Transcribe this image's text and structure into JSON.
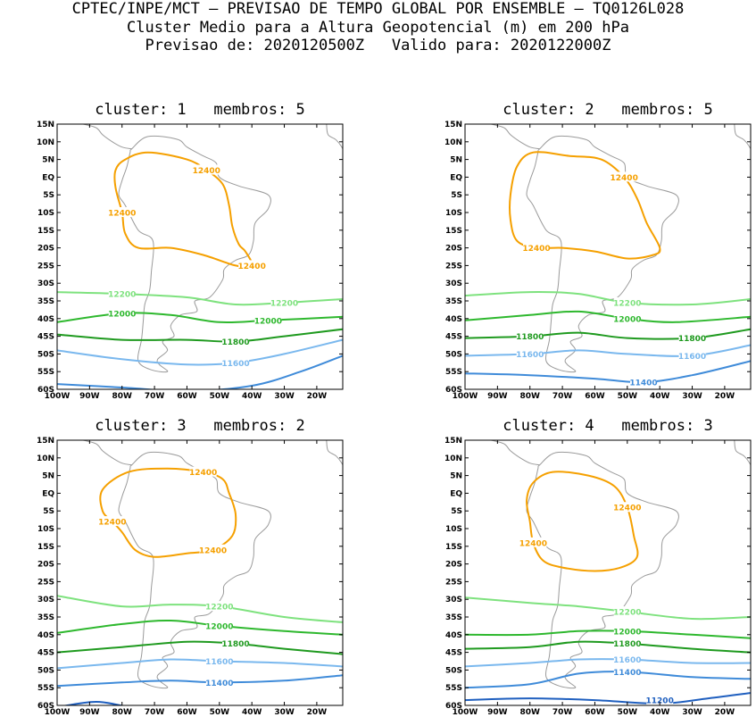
{
  "header": {
    "line1": "CPTEC/INPE/MCT – PREVISAO DE TEMPO GLOBAL POR ENSEMBLE – TQ0126L028",
    "line2": "Cluster Medio para a Altura Geopotencial (m) em 200 hPa",
    "line3": "Previsao de: 2020120500Z   Valido para: 2020122000Z"
  },
  "colors": {
    "c12400": "#f5a000",
    "c12200": "#7ee27e",
    "c12000": "#2eb82e",
    "c11800": "#1f9a1f",
    "c11600": "#7ab8ee",
    "c11400": "#3f8bd9",
    "c11200": "#1f5fbf",
    "map": "#9a9a9a"
  },
  "axes": {
    "lat_labels": [
      "15N",
      "10N",
      "5N",
      "EQ",
      "5S",
      "10S",
      "15S",
      "20S",
      "25S",
      "30S",
      "35S",
      "40S",
      "45S",
      "50S",
      "55S",
      "60S"
    ],
    "lon_labels": [
      "100W",
      "90W",
      "80W",
      "70W",
      "60W",
      "50W",
      "40W",
      "30W",
      "20W"
    ],
    "lat_range": [
      -60,
      15
    ],
    "lon_range": [
      -100,
      -12
    ]
  },
  "chart_data": [
    {
      "type": "contour",
      "title": "cluster: 1   membros: 5",
      "contours": [
        {
          "level": "12400",
          "labels": [
            "12400",
            "12400",
            "12400"
          ],
          "ring": [
            [
              -79,
              5
            ],
            [
              -72,
              7
            ],
            [
              -60,
              5
            ],
            [
              -54,
              2
            ],
            [
              -49,
              -2
            ],
            [
              -47,
              -8
            ],
            [
              -46,
              -14
            ],
            [
              -44,
              -19
            ],
            [
              -42,
              -21
            ],
            [
              -40,
              -25
            ],
            [
              -45,
              -25
            ],
            [
              -55,
              -22
            ],
            [
              -65,
              -20
            ],
            [
              -75,
              -20
            ],
            [
              -79,
              -16
            ],
            [
              -80,
              -10
            ],
            [
              -82,
              -3
            ],
            [
              -82,
              2
            ]
          ]
        },
        {
          "level": "12200",
          "labels": [
            "12200",
            "12200"
          ],
          "line": [
            [
              -100,
              -32.5
            ],
            [
              -80,
              -33
            ],
            [
              -60,
              -34
            ],
            [
              -45,
              -36
            ],
            [
              -30,
              -35.5
            ],
            [
              -12,
              -34.5
            ]
          ]
        },
        {
          "level": "12000",
          "labels": [
            "12000",
            "12000"
          ],
          "line": [
            [
              -100,
              -41
            ],
            [
              -80,
              -38.5
            ],
            [
              -65,
              -39
            ],
            [
              -50,
              -41
            ],
            [
              -35,
              -40.5
            ],
            [
              -12,
              -39.5
            ]
          ]
        },
        {
          "level": "11800",
          "labels": [
            "11800"
          ],
          "line": [
            [
              -100,
              -44.5
            ],
            [
              -80,
              -46
            ],
            [
              -60,
              -46
            ],
            [
              -45,
              -46.5
            ],
            [
              -30,
              -45
            ],
            [
              -12,
              -43
            ]
          ]
        },
        {
          "level": "11600",
          "labels": [
            "11600"
          ],
          "line": [
            [
              -100,
              -49
            ],
            [
              -80,
              -51.5
            ],
            [
              -60,
              -53
            ],
            [
              -45,
              -52.5
            ],
            [
              -30,
              -50
            ],
            [
              -12,
              -46
            ]
          ]
        },
        {
          "level": "11400",
          "labels": [],
          "line": [
            [
              -100,
              -58.5
            ],
            [
              -80,
              -59.5
            ],
            [
              -60,
              -60.5
            ],
            [
              -40,
              -59
            ],
            [
              -25,
              -55
            ],
            [
              -12,
              -50.5
            ]
          ]
        }
      ]
    },
    {
      "type": "contour",
      "title": "cluster: 2   membros: 5",
      "contours": [
        {
          "level": "12400",
          "labels": [
            "12400",
            "12400"
          ],
          "ring": [
            [
              -84,
              3
            ],
            [
              -79,
              7
            ],
            [
              -68,
              6
            ],
            [
              -58,
              5
            ],
            [
              -51,
              0
            ],
            [
              -47,
              -6
            ],
            [
              -44,
              -13
            ],
            [
              -40,
              -20
            ],
            [
              -42,
              -22
            ],
            [
              -50,
              -23
            ],
            [
              -60,
              -21
            ],
            [
              -70,
              -20
            ],
            [
              -78,
              -20
            ],
            [
              -84,
              -18
            ],
            [
              -86,
              -12
            ],
            [
              -86,
              -5
            ]
          ]
        },
        {
          "level": "12200",
          "labels": [
            "12200"
          ],
          "line": [
            [
              -100,
              -33.5
            ],
            [
              -80,
              -32.5
            ],
            [
              -65,
              -33
            ],
            [
              -50,
              -35.5
            ],
            [
              -30,
              -36
            ],
            [
              -12,
              -34.5
            ]
          ]
        },
        {
          "level": "12000",
          "labels": [
            "12000"
          ],
          "line": [
            [
              -100,
              -40.5
            ],
            [
              -80,
              -39
            ],
            [
              -65,
              -38
            ],
            [
              -50,
              -40
            ],
            [
              -35,
              -41
            ],
            [
              -12,
              -39.5
            ]
          ]
        },
        {
          "level": "11800",
          "labels": [
            "11800",
            "11800"
          ],
          "line": [
            [
              -100,
              -45.5
            ],
            [
              -80,
              -45
            ],
            [
              -65,
              -44
            ],
            [
              -50,
              -45.5
            ],
            [
              -30,
              -45.5
            ],
            [
              -12,
              -43
            ]
          ]
        },
        {
          "level": "11600",
          "labels": [
            "11600",
            "11600"
          ],
          "line": [
            [
              -100,
              -50.5
            ],
            [
              -80,
              -50
            ],
            [
              -65,
              -49
            ],
            [
              -50,
              -50
            ],
            [
              -30,
              -50.5
            ],
            [
              -12,
              -47.5
            ]
          ]
        },
        {
          "level": "11400",
          "labels": [
            "11400"
          ],
          "line": [
            [
              -100,
              -55.5
            ],
            [
              -80,
              -56
            ],
            [
              -60,
              -57
            ],
            [
              -45,
              -58
            ],
            [
              -30,
              -56
            ],
            [
              -12,
              -52
            ]
          ]
        }
      ]
    },
    {
      "type": "contour",
      "title": "cluster: 3   membros: 2",
      "contours": [
        {
          "level": "12400",
          "labels": [
            "12400",
            "12400",
            "12400"
          ],
          "ring": [
            [
              -86,
              1
            ],
            [
              -78,
              6
            ],
            [
              -66,
              7
            ],
            [
              -55,
              6
            ],
            [
              -49,
              4
            ],
            [
              -47,
              0
            ],
            [
              -45,
              -6
            ],
            [
              -46,
              -12
            ],
            [
              -52,
              -16
            ],
            [
              -60,
              -17
            ],
            [
              -70,
              -18
            ],
            [
              -76,
              -16
            ],
            [
              -80,
              -11
            ],
            [
              -83,
              -8
            ],
            [
              -86,
              -5
            ]
          ]
        },
        {
          "level": "12200",
          "labels": [
            "12200"
          ],
          "line": [
            [
              -100,
              -29
            ],
            [
              -80,
              -32
            ],
            [
              -65,
              -31.5
            ],
            [
              -50,
              -32
            ],
            [
              -30,
              -35
            ],
            [
              -12,
              -36.5
            ]
          ]
        },
        {
          "level": "12000",
          "labels": [
            "12000"
          ],
          "line": [
            [
              -100,
              -39.5
            ],
            [
              -80,
              -37
            ],
            [
              -65,
              -36
            ],
            [
              -50,
              -37.5
            ],
            [
              -30,
              -39
            ],
            [
              -12,
              -40
            ]
          ]
        },
        {
          "level": "11800",
          "labels": [
            "11800"
          ],
          "line": [
            [
              -100,
              -45
            ],
            [
              -80,
              -43.5
            ],
            [
              -60,
              -42
            ],
            [
              -45,
              -42.5
            ],
            [
              -30,
              -44
            ],
            [
              -12,
              -45.5
            ]
          ]
        },
        {
          "level": "11600",
          "labels": [
            "11600"
          ],
          "line": [
            [
              -100,
              -49.5
            ],
            [
              -80,
              -48
            ],
            [
              -65,
              -47
            ],
            [
              -50,
              -47.5
            ],
            [
              -30,
              -48
            ],
            [
              -12,
              -49
            ]
          ]
        },
        {
          "level": "11400",
          "labels": [
            "11400"
          ],
          "line": [
            [
              -100,
              -54.5
            ],
            [
              -80,
              -53.5
            ],
            [
              -65,
              -53
            ],
            [
              -50,
              -53.5
            ],
            [
              -30,
              -53
            ],
            [
              -12,
              -51.5
            ]
          ]
        },
        {
          "level": "11200",
          "labels": [],
          "line": [
            [
              -100,
              -60.5
            ],
            [
              -88,
              -59
            ],
            [
              -78,
              -60.5
            ]
          ]
        }
      ]
    },
    {
      "type": "contour",
      "title": "cluster: 4   membros: 3",
      "contours": [
        {
          "level": "12400",
          "labels": [
            "12400",
            "12400"
          ],
          "ring": [
            [
              -79,
              3
            ],
            [
              -73,
              6
            ],
            [
              -62,
              5
            ],
            [
              -54,
              2
            ],
            [
              -50,
              -4
            ],
            [
              -48,
              -12
            ],
            [
              -47,
              -18
            ],
            [
              -52,
              -21
            ],
            [
              -60,
              -22
            ],
            [
              -70,
              -21
            ],
            [
              -76,
              -19
            ],
            [
              -79,
              -14
            ],
            [
              -80,
              -8
            ],
            [
              -81,
              -2
            ]
          ]
        },
        {
          "level": "12200",
          "labels": [
            "12200"
          ],
          "line": [
            [
              -100,
              -29.5
            ],
            [
              -80,
              -31
            ],
            [
              -65,
              -32
            ],
            [
              -50,
              -33.5
            ],
            [
              -30,
              -35.5
            ],
            [
              -12,
              -35
            ]
          ]
        },
        {
          "level": "12000",
          "labels": [
            "12000"
          ],
          "line": [
            [
              -100,
              -40
            ],
            [
              -80,
              -40
            ],
            [
              -65,
              -39
            ],
            [
              -50,
              -39
            ],
            [
              -30,
              -40
            ],
            [
              -12,
              -41
            ]
          ]
        },
        {
          "level": "11800",
          "labels": [
            "11800"
          ],
          "line": [
            [
              -100,
              -44
            ],
            [
              -80,
              -43.5
            ],
            [
              -65,
              -42
            ],
            [
              -50,
              -42.5
            ],
            [
              -30,
              -44
            ],
            [
              -12,
              -45
            ]
          ]
        },
        {
          "level": "11600",
          "labels": [
            "11600"
          ],
          "line": [
            [
              -100,
              -49
            ],
            [
              -80,
              -48
            ],
            [
              -65,
              -47
            ],
            [
              -50,
              -47
            ],
            [
              -30,
              -48
            ],
            [
              -12,
              -48
            ]
          ]
        },
        {
          "level": "11400",
          "labels": [
            "11400"
          ],
          "line": [
            [
              -100,
              -55
            ],
            [
              -80,
              -54
            ],
            [
              -65,
              -51
            ],
            [
              -50,
              -50.5
            ],
            [
              -30,
              -52
            ],
            [
              -12,
              -52.5
            ]
          ]
        },
        {
          "level": "11200",
          "labels": [
            "11200"
          ],
          "line": [
            [
              -100,
              -58.5
            ],
            [
              -80,
              -58
            ],
            [
              -60,
              -58.5
            ],
            [
              -40,
              -59.5
            ],
            [
              -25,
              -58
            ],
            [
              -12,
              -56.5
            ]
          ]
        }
      ]
    }
  ]
}
